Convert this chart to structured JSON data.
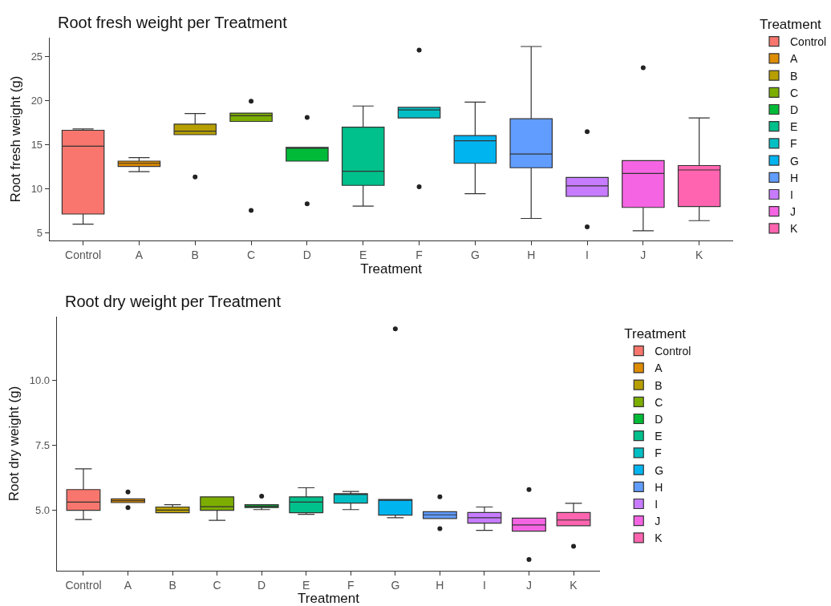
{
  "chart_data": [
    {
      "type": "box",
      "title": "Root fresh weight per Treatment",
      "xlabel": "Treatment",
      "ylabel": "Root fresh weight (g)",
      "legend_title": "Treatment",
      "legend": "right",
      "categories": [
        "Control",
        "A",
        "B",
        "C",
        "D",
        "E",
        "F",
        "G",
        "H",
        "I",
        "J",
        "K"
      ],
      "ylim": [
        4.1,
        27.1
      ],
      "yticks": [
        5,
        10,
        15,
        20,
        25
      ],
      "series": [
        {
          "name": "Control",
          "color": "#f8766d",
          "boxes": [
            {
              "low": 5.95,
              "q1": 7.1,
              "median": 14.8,
              "q3": 16.6,
              "high": 16.75
            },
            null,
            null,
            null,
            null,
            null,
            null,
            null,
            null,
            null,
            null,
            null
          ]
        },
        {
          "name": "A",
          "color": "#de8c00",
          "boxes": [
            null,
            {
              "low": 11.9,
              "q1": 12.5,
              "median": 12.85,
              "q3": 13.1,
              "high": 13.5
            },
            null,
            null,
            null,
            null,
            null,
            null,
            null,
            null,
            null,
            null
          ]
        },
        {
          "name": "B",
          "color": "#b79f00",
          "boxes": [
            null,
            null,
            {
              "low": 16.1,
              "q1": 16.1,
              "median": 16.5,
              "q3": 17.3,
              "high": 18.5,
              "outliers": [
                11.3
              ]
            },
            null,
            null,
            null,
            null,
            null,
            null,
            null,
            null,
            null
          ]
        },
        {
          "name": "C",
          "color": "#7cae00",
          "boxes": [
            null,
            null,
            null,
            {
              "low": 17.6,
              "q1": 17.6,
              "median": 18.25,
              "q3": 18.55,
              "high": 18.55,
              "outliers": [
                19.9,
                7.5
              ]
            },
            null,
            null,
            null,
            null,
            null,
            null,
            null,
            null
          ]
        },
        {
          "name": "D",
          "color": "#00ba38",
          "boxes": [
            null,
            null,
            null,
            null,
            {
              "low": 13.1,
              "q1": 13.1,
              "median": 14.6,
              "q3": 14.65,
              "high": 14.65,
              "outliers": [
                18.05,
                8.25
              ]
            },
            null,
            null,
            null,
            null,
            null,
            null,
            null
          ]
        },
        {
          "name": "E",
          "color": "#00c08b",
          "boxes": [
            null,
            null,
            null,
            null,
            null,
            {
              "low": 8.0,
              "q1": 10.35,
              "median": 11.95,
              "q3": 16.95,
              "high": 19.35
            },
            null,
            null,
            null,
            null,
            null,
            null
          ]
        },
        {
          "name": "F",
          "color": "#00bfc4",
          "boxes": [
            null,
            null,
            null,
            null,
            null,
            null,
            {
              "low": 18.0,
              "q1": 18.0,
              "median": 18.9,
              "q3": 19.2,
              "high": 19.2,
              "outliers": [
                25.7,
                10.2
              ]
            },
            null,
            null,
            null,
            null,
            null
          ]
        },
        {
          "name": "G",
          "color": "#00b4f0",
          "boxes": [
            null,
            null,
            null,
            null,
            null,
            null,
            null,
            {
              "low": 9.4,
              "q1": 12.85,
              "median": 15.4,
              "q3": 16.0,
              "high": 19.8
            },
            null,
            null,
            null,
            null
          ]
        },
        {
          "name": "H",
          "color": "#619cff",
          "boxes": [
            null,
            null,
            null,
            null,
            null,
            null,
            null,
            null,
            {
              "low": 6.6,
              "q1": 12.35,
              "median": 13.9,
              "q3": 17.9,
              "high": 26.1
            },
            null,
            null,
            null
          ]
        },
        {
          "name": "I",
          "color": "#c77cff",
          "boxes": [
            null,
            null,
            null,
            null,
            null,
            null,
            null,
            null,
            null,
            {
              "low": 9.1,
              "q1": 9.1,
              "median": 10.3,
              "q3": 11.25,
              "high": 11.25,
              "outliers": [
                16.45,
                5.65
              ]
            },
            null,
            null
          ]
        },
        {
          "name": "J",
          "color": "#f564e3",
          "boxes": [
            null,
            null,
            null,
            null,
            null,
            null,
            null,
            null,
            null,
            null,
            {
              "low": 5.2,
              "q1": 7.85,
              "median": 11.7,
              "q3": 13.15,
              "high": 13.15,
              "outliers": [
                23.7
              ]
            },
            null
          ]
        },
        {
          "name": "K",
          "color": "#ff64b0",
          "boxes": [
            null,
            null,
            null,
            null,
            null,
            null,
            null,
            null,
            null,
            null,
            null,
            {
              "low": 6.35,
              "q1": 7.95,
              "median": 12.1,
              "q3": 12.6,
              "high": 18.0
            }
          ]
        }
      ]
    },
    {
      "type": "box",
      "title": "Root dry weight per Treatment",
      "xlabel": "Treatment",
      "ylabel": "Root dry weight (g)",
      "legend_title": "Treatment",
      "legend": "right",
      "categories": [
        "Control",
        "A",
        "B",
        "C",
        "D",
        "E",
        "F",
        "G",
        "H",
        "I",
        "J",
        "K"
      ],
      "ylim": [
        2.68,
        12.45
      ],
      "yticks": [
        {
          "value": 5,
          "label": "5.0"
        },
        {
          "value": 7.5,
          "label": "7.5"
        },
        {
          "value": 10,
          "label": "10.0"
        }
      ],
      "series": [
        {
          "name": "Control",
          "color": "#f8766d",
          "boxes": [
            {
              "low": 4.65,
              "q1": 5.0,
              "median": 5.32,
              "q3": 5.8,
              "high": 6.6
            },
            null,
            null,
            null,
            null,
            null,
            null,
            null,
            null,
            null,
            null,
            null
          ]
        },
        {
          "name": "A",
          "color": "#de8c00",
          "boxes": [
            null,
            {
              "low": 5.3,
              "q1": 5.3,
              "median": 5.37,
              "q3": 5.44,
              "high": 5.44,
              "outliers": [
                5.71,
                5.11
              ]
            },
            null,
            null,
            null,
            null,
            null,
            null,
            null,
            null,
            null,
            null
          ]
        },
        {
          "name": "B",
          "color": "#b79f00",
          "boxes": [
            null,
            null,
            {
              "low": 4.91,
              "q1": 4.91,
              "median": 5.01,
              "q3": 5.13,
              "high": 5.22
            },
            null,
            null,
            null,
            null,
            null,
            null,
            null,
            null,
            null
          ]
        },
        {
          "name": "C",
          "color": "#7cae00",
          "boxes": [
            null,
            null,
            null,
            {
              "low": 4.62,
              "q1": 5.0,
              "median": 5.14,
              "q3": 5.52,
              "high": 5.52
            },
            null,
            null,
            null,
            null,
            null,
            null,
            null,
            null
          ]
        },
        {
          "name": "D",
          "color": "#00ba38",
          "boxes": [
            null,
            null,
            null,
            null,
            {
              "low": 5.03,
              "q1": 5.11,
              "median": 5.16,
              "q3": 5.22,
              "high": 5.22,
              "outliers": [
                5.55
              ]
            },
            null,
            null,
            null,
            null,
            null,
            null,
            null
          ]
        },
        {
          "name": "E",
          "color": "#00c08b",
          "boxes": [
            null,
            null,
            null,
            null,
            null,
            {
              "low": 4.85,
              "q1": 4.91,
              "median": 5.32,
              "q3": 5.52,
              "high": 5.87
            },
            null,
            null,
            null,
            null,
            null,
            null
          ]
        },
        {
          "name": "F",
          "color": "#00bfc4",
          "boxes": [
            null,
            null,
            null,
            null,
            null,
            null,
            {
              "low": 5.03,
              "q1": 5.28,
              "median": 5.62,
              "q3": 5.64,
              "high": 5.73
            },
            null,
            null,
            null,
            null,
            null
          ]
        },
        {
          "name": "G",
          "color": "#00b4f0",
          "boxes": [
            null,
            null,
            null,
            null,
            null,
            null,
            null,
            {
              "low": 4.72,
              "q1": 4.82,
              "median": 5.4,
              "q3": 5.42,
              "high": 5.42,
              "outliers": [
                11.98
              ]
            },
            null,
            null,
            null,
            null
          ]
        },
        {
          "name": "H",
          "color": "#619cff",
          "boxes": [
            null,
            null,
            null,
            null,
            null,
            null,
            null,
            null,
            {
              "low": 4.69,
              "q1": 4.69,
              "median": 4.83,
              "q3": 4.95,
              "high": 4.95,
              "outliers": [
                5.52,
                4.3
              ]
            },
            null,
            null,
            null
          ]
        },
        {
          "name": "I",
          "color": "#c77cff",
          "boxes": [
            null,
            null,
            null,
            null,
            null,
            null,
            null,
            null,
            null,
            {
              "low": 4.23,
              "q1": 4.51,
              "median": 4.72,
              "q3": 4.92,
              "high": 5.13
            },
            null,
            null
          ]
        },
        {
          "name": "J",
          "color": "#f564e3",
          "boxes": [
            null,
            null,
            null,
            null,
            null,
            null,
            null,
            null,
            null,
            null,
            {
              "low": 4.2,
              "q1": 4.2,
              "median": 4.44,
              "q3": 4.7,
              "high": 4.7,
              "outliers": [
                5.8,
                3.11
              ]
            },
            null
          ]
        },
        {
          "name": "K",
          "color": "#ff64b0",
          "boxes": [
            null,
            null,
            null,
            null,
            null,
            null,
            null,
            null,
            null,
            null,
            null,
            {
              "low": 4.41,
              "q1": 4.41,
              "median": 4.63,
              "q3": 4.92,
              "high": 5.27,
              "outliers": [
                3.62
              ]
            }
          ]
        }
      ]
    }
  ]
}
